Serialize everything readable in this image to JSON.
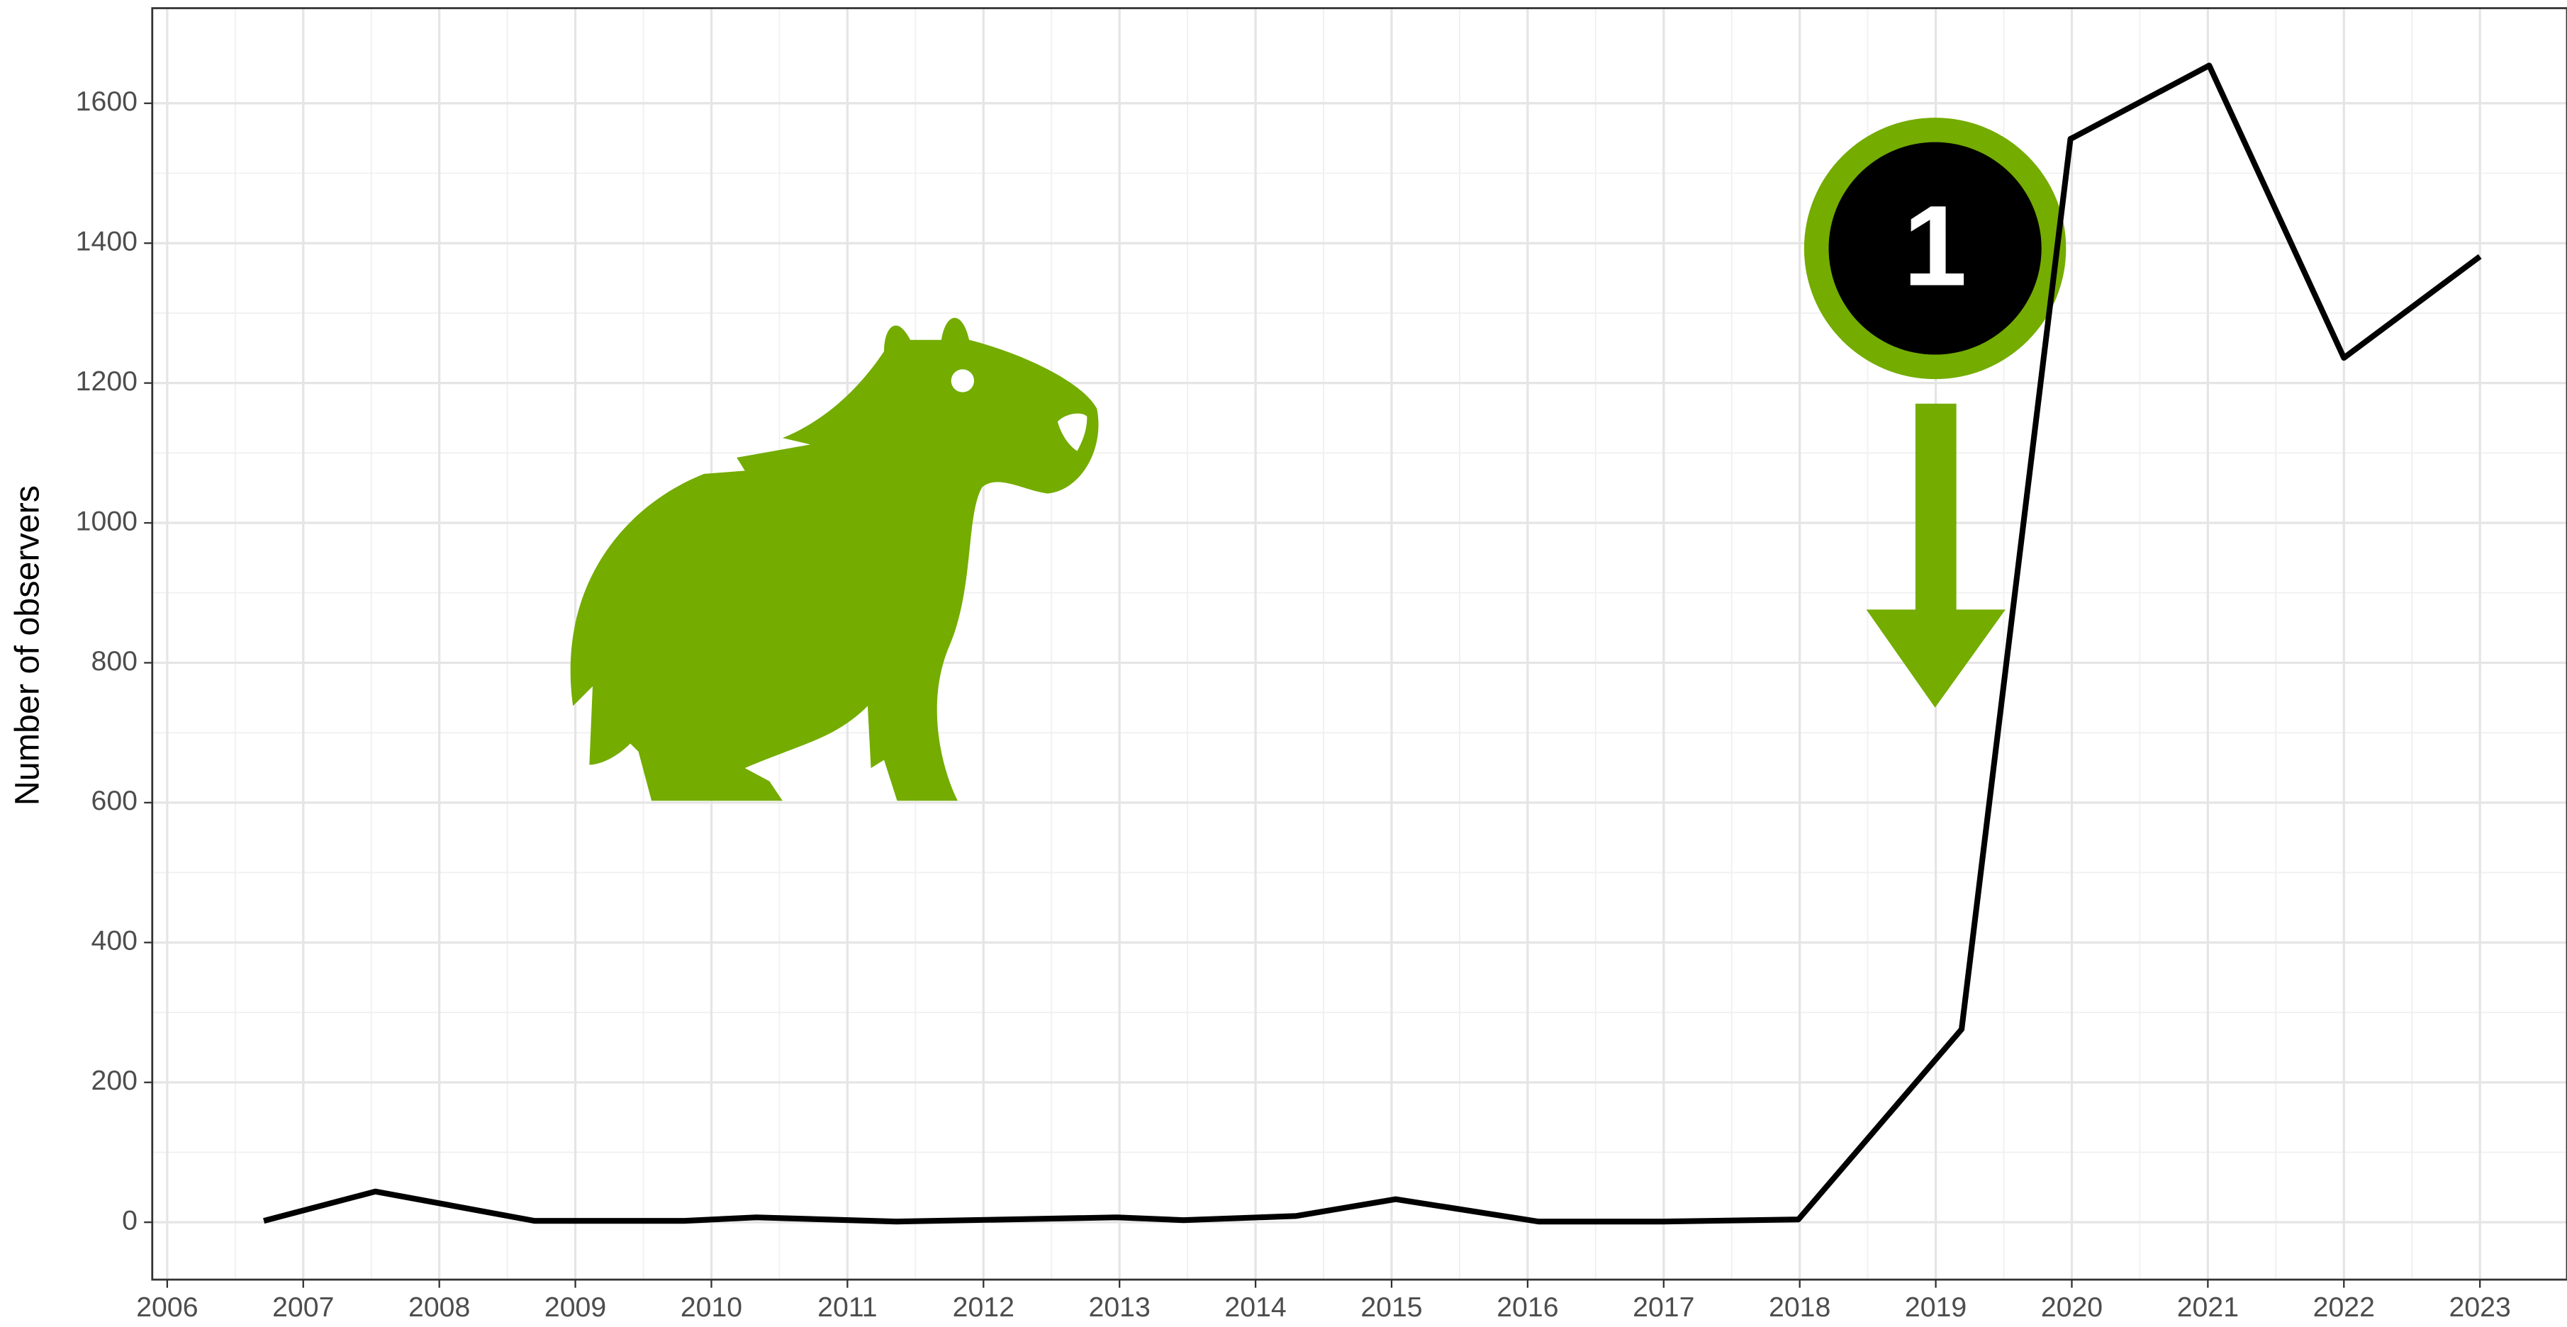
{
  "chart_data": {
    "type": "line",
    "y_label": "Number of observers",
    "annotation": "1",
    "x": [
      2006.71,
      2007.53,
      2008.7,
      2009.8,
      2010.33,
      2011.36,
      2012.98,
      2013.47,
      2014.3,
      2015.03,
      2016.08,
      2016.99,
      2017.99,
      2019.19,
      2019.99,
      2021.01,
      2022.0,
      2023.0
    ],
    "values": [
      2,
      44,
      2,
      2,
      7,
      1,
      7,
      3,
      9,
      33,
      1,
      1,
      4,
      276,
      1549,
      1654,
      1236,
      1381
    ],
    "color": "#000000",
    "xlim": [
      2005.89,
      2023.64
    ],
    "xticks": [
      2006,
      2007,
      2008,
      2009,
      2010,
      2011,
      2012,
      2013,
      2014,
      2015,
      2016,
      2017,
      2018,
      2019,
      2020,
      2021,
      2022,
      2023
    ],
    "ylim": [
      -82,
      1736
    ],
    "yticks": [
      0,
      200,
      400,
      600,
      800,
      1000,
      1200,
      1400,
      1600
    ],
    "grid": true
  }
}
